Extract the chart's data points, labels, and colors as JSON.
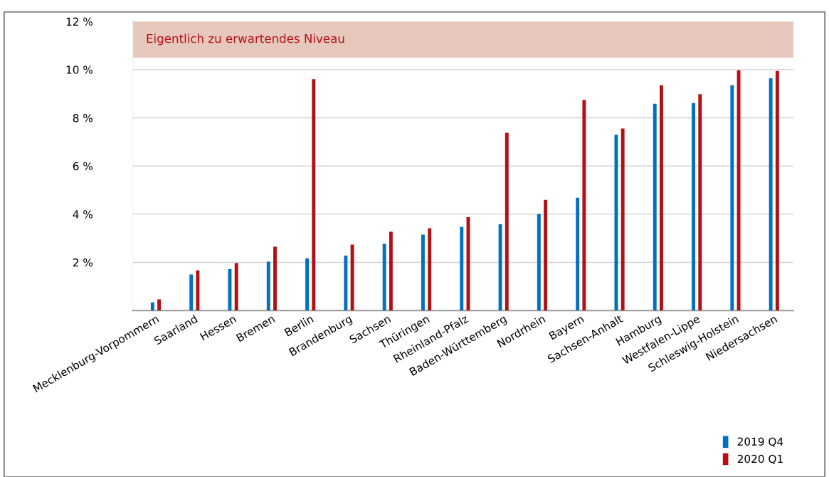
{
  "chart_data": {
    "type": "bar",
    "categories": [
      "Mecklenburg-Vorpommern",
      "Saarland",
      "Hessen",
      "Bremen",
      "Berlin",
      "Brandenburg",
      "Sachsen",
      "Thüringen",
      "Rheinland-Pfalz",
      "Baden-Württemberg",
      "Nordrhein",
      "Bayern",
      "Sachsen-Anhalt",
      "Hamburg",
      "Westfalen-Lippe",
      "Schleswig-Holstein",
      "Niedersachsen"
    ],
    "series": [
      {
        "name": "2019 Q4",
        "color": "#0070c0",
        "values": [
          0.34,
          1.5,
          1.72,
          2.03,
          2.16,
          2.28,
          2.77,
          3.15,
          3.47,
          3.58,
          4.01,
          4.68,
          7.3,
          8.58,
          8.61,
          9.35,
          9.64
        ]
      },
      {
        "name": "2020 Q1",
        "color": "#b30f14",
        "values": [
          0.46,
          1.67,
          1.97,
          2.65,
          9.6,
          2.74,
          3.27,
          3.42,
          3.88,
          7.38,
          4.59,
          8.74,
          7.56,
          9.35,
          8.98,
          9.97,
          9.94
        ]
      }
    ],
    "ylim": [
      0,
      12
    ],
    "yticks": [
      {
        "value": 2,
        "label": "2 %"
      },
      {
        "value": 4,
        "label": "4 %"
      },
      {
        "value": 6,
        "label": "6 %"
      },
      {
        "value": 8,
        "label": "8 %"
      },
      {
        "value": 10,
        "label": "10 %"
      },
      {
        "value": 12,
        "label": "12 %"
      }
    ],
    "bands": [
      {
        "axis": "y",
        "from": 10.5,
        "to": 12,
        "label": "Eigentlich zu erwartendes Niveau",
        "color": "#e6c8bc"
      }
    ],
    "grid": "y",
    "legend": "bottom right"
  }
}
